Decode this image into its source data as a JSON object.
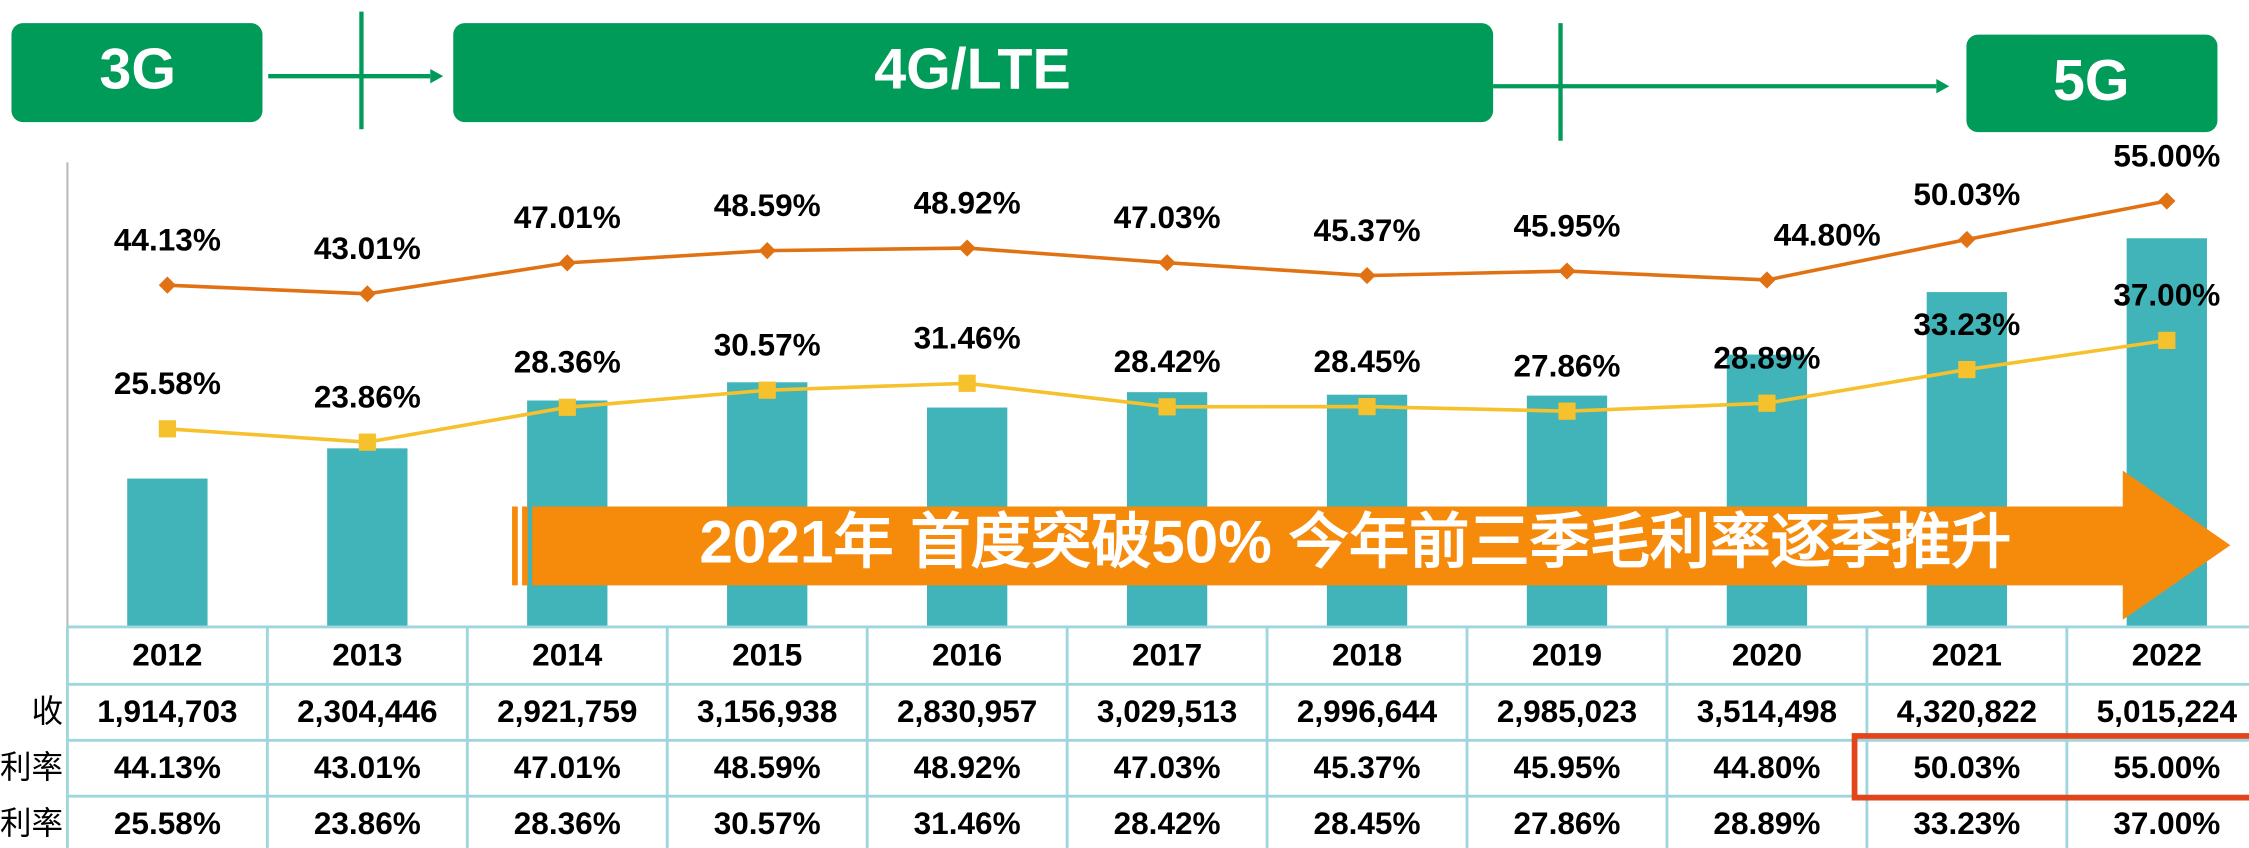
{
  "chart_data": {
    "type": "bar",
    "phases": [
      "3G",
      "4G/LTE",
      "5G"
    ],
    "annotation": "2021年 首度突破50% 今年前三季毛利率逐季推升",
    "categories": [
      "2012",
      "2013",
      "2014",
      "2015",
      "2016",
      "2017",
      "2018",
      "2019",
      "2020",
      "2021",
      "2022"
    ],
    "row_labels": [
      "收",
      "利率",
      "利率"
    ],
    "series": [
      {
        "type": "bar",
        "color": "#40b4b8",
        "values": [
          1914703,
          2304446,
          2921759,
          3156938,
          2830957,
          3029513,
          2996644,
          2985023,
          3514498,
          4320822,
          5015224
        ],
        "value_labels": [
          "1,914,703",
          "2,304,446",
          "2,921,759",
          "3,156,938",
          "2,830,957",
          "3,029,513",
          "2,996,644",
          "2,985,023",
          "3,514,498",
          "4,320,822",
          "5,015,224"
        ]
      },
      {
        "type": "line",
        "axis": "y2",
        "color": "#e07214",
        "values": [
          44.13,
          43.01,
          47.01,
          48.59,
          48.92,
          47.03,
          45.37,
          45.95,
          44.8,
          50.03,
          55.0
        ],
        "value_labels": [
          "44.13%",
          "43.01%",
          "47.01%",
          "48.59%",
          "48.92%",
          "47.03%",
          "45.37%",
          "45.95%",
          "44.80%",
          "50.03%",
          "55.00%"
        ]
      },
      {
        "type": "line",
        "axis": "y2",
        "color": "#f5c12c",
        "values": [
          25.58,
          23.86,
          28.36,
          30.57,
          31.46,
          28.42,
          28.45,
          27.86,
          28.89,
          33.23,
          37.0
        ],
        "value_labels": [
          "25.58%",
          "23.86%",
          "28.36%",
          "30.57%",
          "31.46%",
          "28.42%",
          "28.45%",
          "27.86%",
          "28.89%",
          "33.23%",
          "37.00%"
        ]
      }
    ]
  }
}
